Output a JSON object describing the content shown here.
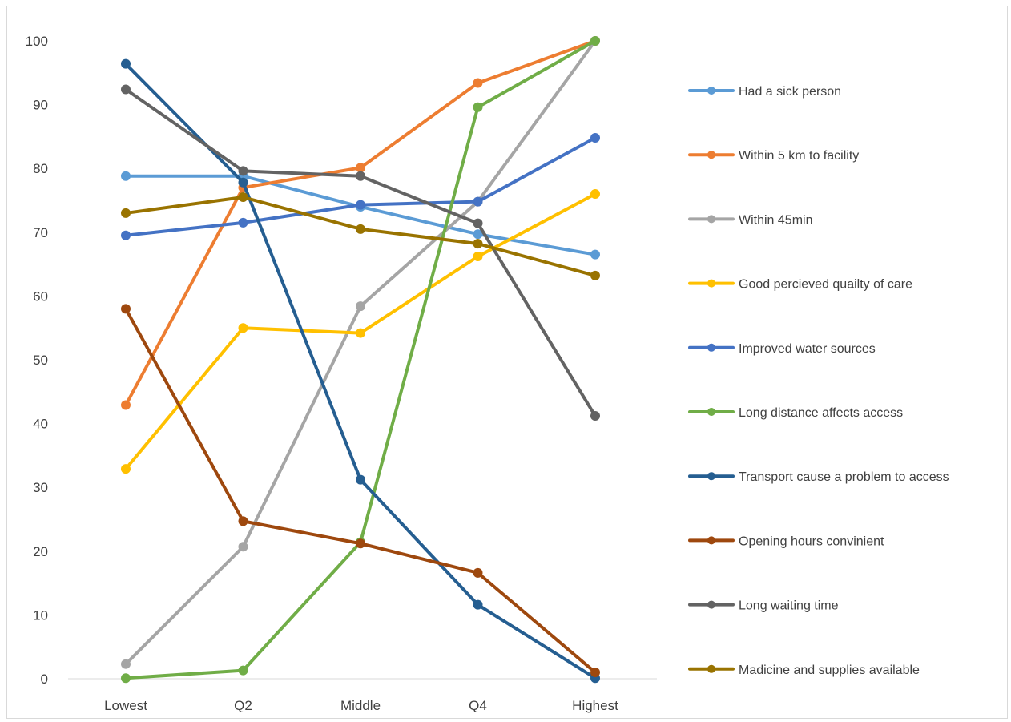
{
  "chart_data": {
    "type": "line",
    "title": "",
    "xlabel": "",
    "ylabel": "",
    "categories": [
      "Lowest",
      "Q2",
      "Middle",
      "Q4",
      "Highest"
    ],
    "ylim": [
      0,
      100
    ],
    "yticks": [
      "0",
      "10",
      "20",
      "30",
      "40",
      "50",
      "60",
      "70",
      "80",
      "90",
      "100"
    ],
    "grid": false,
    "legend_position": "right",
    "series": [
      {
        "name": "Had a sick person",
        "color": "#5b9bd5",
        "values": [
          78.8,
          78.8,
          74.0,
          69.7,
          66.5
        ]
      },
      {
        "name": "Within 5 km to facility",
        "color": "#ed7d31",
        "values": [
          42.9,
          77.0,
          80.1,
          93.4,
          100
        ]
      },
      {
        "name": "Within 45min",
        "color": "#a5a5a5",
        "values": [
          2.3,
          20.7,
          58.4,
          74.8,
          100
        ]
      },
      {
        "name": "Good percieved quailty of care",
        "color": "#ffc000",
        "values": [
          32.9,
          55.0,
          54.2,
          66.2,
          76.0
        ]
      },
      {
        "name": "Improved  water sources",
        "color": "#4472c4",
        "values": [
          69.5,
          71.5,
          74.3,
          74.8,
          84.8
        ]
      },
      {
        "name": "Long distance affects access",
        "color": "#70ad47",
        "values": [
          0.1,
          1.3,
          21.4,
          89.6,
          100
        ]
      },
      {
        "name": "Transport cause a problem to access",
        "color": "#255e91",
        "values": [
          96.4,
          77.8,
          31.2,
          11.6,
          0.1
        ]
      },
      {
        "name": "Opening hours convinient",
        "color": "#9e480e",
        "values": [
          58.0,
          24.7,
          21.2,
          16.6,
          1.0
        ]
      },
      {
        "name": "Long waiting time",
        "color": "#636363",
        "values": [
          92.4,
          79.6,
          78.8,
          71.4,
          41.2
        ]
      },
      {
        "name": "Madicine and supplies available",
        "color": "#997300",
        "values": [
          73.0,
          75.5,
          70.5,
          68.2,
          63.2
        ]
      }
    ]
  }
}
